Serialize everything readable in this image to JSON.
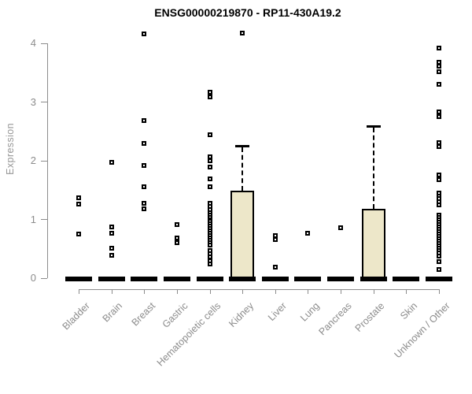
{
  "page": {
    "title": "ENSG00000219870 - RP11-430A19.2"
  },
  "chart_data": {
    "type": "boxplot",
    "title": "ENSG00000219870 - RP11-430A19.2",
    "xlabel": "",
    "ylabel": "Expression",
    "ylim": [
      0,
      4
    ],
    "yticks": [
      0,
      1,
      2,
      3,
      4
    ],
    "grid": false,
    "legend": "none",
    "colors": {
      "background": "#ffffff",
      "title": "#000000",
      "axis": "#8c8c8c",
      "tick_labels": "#8c8c8c",
      "box_fill": "#ede7c9",
      "box_border": "#000000",
      "zero_bar": "#000000",
      "point": "#000000"
    },
    "categories": [
      "Bladder",
      "Brain",
      "Breast",
      "Gastric",
      "Hematopoietic cells",
      "Kidney",
      "Liver",
      "Lung",
      "Pancreas",
      "Prostate",
      "Skin",
      "Unknown / Other"
    ],
    "series": [
      {
        "category": "Bladder",
        "median": 0,
        "q1": 0,
        "q3": 0,
        "whisker_low": 0,
        "whisker_high": 0,
        "outliers": [
          1.37,
          1.26,
          0.75
        ]
      },
      {
        "category": "Brain",
        "median": 0,
        "q1": 0,
        "q3": 0,
        "whisker_low": 0,
        "whisker_high": 0,
        "outliers": [
          1.97,
          0.87,
          0.76,
          0.51,
          0.39
        ]
      },
      {
        "category": "Breast",
        "median": 0,
        "q1": 0,
        "q3": 0,
        "whisker_low": 0,
        "whisker_high": 0,
        "outliers": [
          4.16,
          2.68,
          2.3,
          1.92,
          1.56,
          1.28,
          1.18
        ]
      },
      {
        "category": "Gastric",
        "median": 0,
        "q1": 0,
        "q3": 0,
        "whisker_low": 0,
        "whisker_high": 0,
        "outliers": [
          0.91,
          0.68,
          0.6
        ]
      },
      {
        "category": "Hematopoietic cells",
        "median": 0,
        "q1": 0,
        "q3": 0,
        "whisker_low": 0,
        "whisker_high": 0,
        "outliers": [
          3.17,
          3.09,
          2.44,
          2.07,
          2.0,
          1.89,
          1.69,
          1.56,
          1.27,
          1.22,
          1.17,
          1.12,
          1.08,
          1.04,
          1.0,
          0.96,
          0.92,
          0.88,
          0.84,
          0.8,
          0.76,
          0.72,
          0.68,
          0.64,
          0.6,
          0.56,
          0.47,
          0.42,
          0.36,
          0.3,
          0.24
        ]
      },
      {
        "category": "Kidney",
        "median": 0,
        "q1": 0,
        "q3": 1.49,
        "whisker_low": 0,
        "whisker_high": 2.25,
        "outliers": [
          4.17
        ]
      },
      {
        "category": "Liver",
        "median": 0,
        "q1": 0,
        "q3": 0,
        "whisker_low": 0,
        "whisker_high": 0,
        "outliers": [
          0.73,
          0.66,
          0.19
        ]
      },
      {
        "category": "Lung",
        "median": 0,
        "q1": 0,
        "q3": 0,
        "whisker_low": 0,
        "whisker_high": 0,
        "outliers": [
          0.77
        ]
      },
      {
        "category": "Pancreas",
        "median": 0,
        "q1": 0,
        "q3": 0,
        "whisker_low": 0,
        "whisker_high": 0,
        "outliers": [
          0.86
        ]
      },
      {
        "category": "Prostate",
        "median": 0,
        "q1": 0,
        "q3": 1.18,
        "whisker_low": 0,
        "whisker_high": 2.59,
        "outliers": []
      },
      {
        "category": "Skin",
        "median": 0,
        "q1": 0,
        "q3": 0,
        "whisker_low": 0,
        "whisker_high": 0,
        "outliers": []
      },
      {
        "category": "Unknown / Other",
        "median": 0,
        "q1": 0,
        "q3": 0,
        "whisker_low": 0,
        "whisker_high": 0,
        "outliers": [
          3.92,
          3.68,
          3.61,
          3.52,
          3.3,
          2.83,
          2.75,
          2.31,
          2.24,
          1.76,
          1.68,
          1.45,
          1.4,
          1.35,
          1.3,
          1.25,
          1.07,
          1.03,
          0.99,
          0.95,
          0.91,
          0.87,
          0.83,
          0.79,
          0.75,
          0.71,
          0.67,
          0.63,
          0.59,
          0.55,
          0.51,
          0.47,
          0.43,
          0.38,
          0.28,
          0.15
        ]
      }
    ]
  }
}
